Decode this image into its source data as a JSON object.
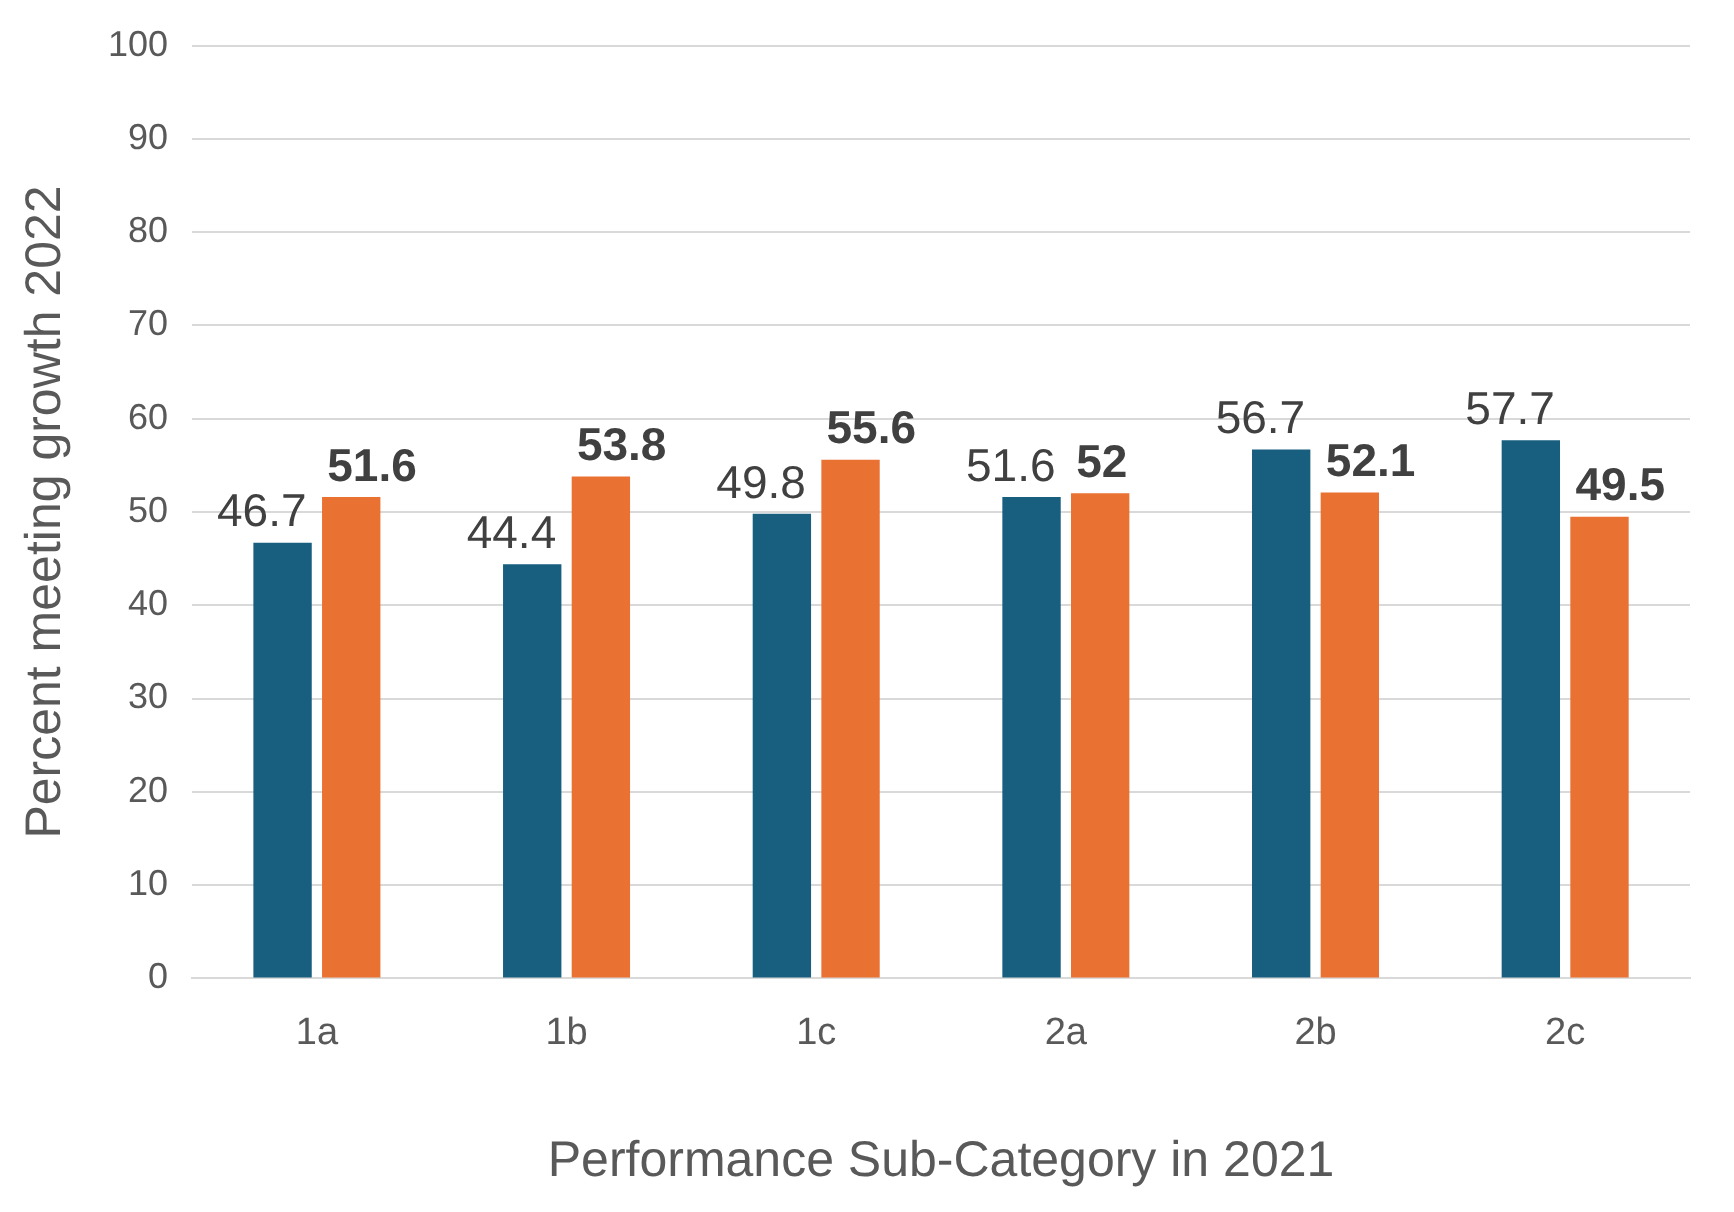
{
  "chart_data": {
    "type": "bar",
    "xlabel": "Performance Sub-Category in 2021",
    "ylabel": "Percent meeting growth 2022",
    "categories": [
      "1a",
      "1b",
      "1c",
      "2a",
      "2b",
      "2c"
    ],
    "series": [
      {
        "color": "#175e7f",
        "values": [
          46.7,
          44.4,
          49.8,
          51.6,
          56.7,
          57.7
        ]
      },
      {
        "color": "#e97132",
        "values": [
          51.6,
          53.8,
          55.6,
          52,
          52.1,
          49.5
        ]
      }
    ],
    "ylim": [
      0,
      100
    ],
    "yticks": [
      0,
      10,
      20,
      30,
      40,
      50,
      60,
      70,
      80,
      90,
      100
    ],
    "grid": "y",
    "legend": false,
    "data_labels": true
  }
}
